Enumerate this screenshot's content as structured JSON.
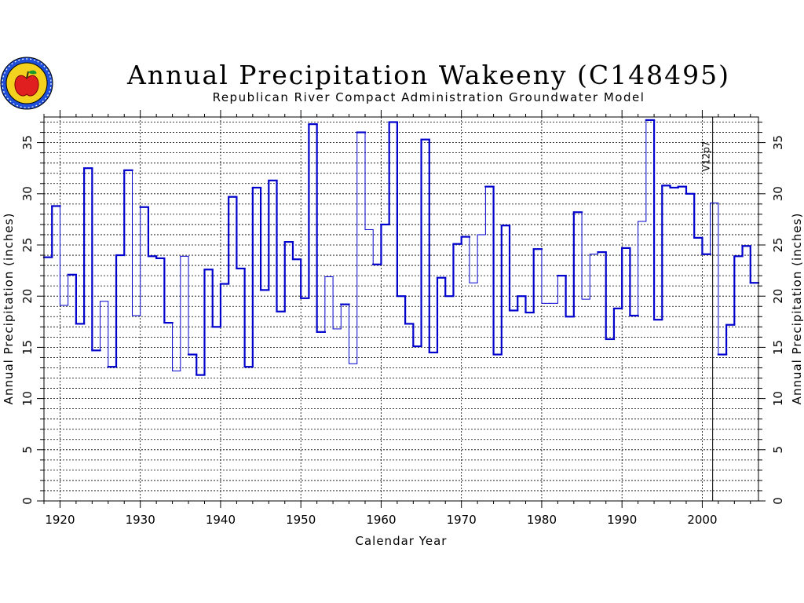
{
  "logo": {
    "icon": "apple-seal-logo",
    "colors": {
      "ring": "#1f4fd8",
      "fill": "#f2d21f",
      "apple": "#e02020"
    }
  },
  "chart_data": {
    "type": "line",
    "step": true,
    "title": "Annual Precipitation Wakeeny (C148495)",
    "subtitle": "Republican River Compact Administration Groundwater Model",
    "xlabel": "Calendar Year",
    "ylabel": "Annual Precipitation (inches)",
    "ylabel_right": "Annual Precipitation (inches)",
    "xlim": [
      1918,
      2007
    ],
    "ylim": [
      0,
      37.5
    ],
    "xticks": [
      1920,
      1930,
      1940,
      1950,
      1960,
      1970,
      1980,
      1990,
      2000
    ],
    "yticks": [
      0,
      5,
      10,
      15,
      20,
      25,
      30,
      35
    ],
    "grid": true,
    "vline": {
      "x": 2001,
      "label": "V12p7"
    },
    "series": [
      {
        "color": "#0000cc",
        "x": [
          1918,
          1919,
          1920,
          1921,
          1922,
          1923,
          1924,
          1925,
          1926,
          1927,
          1928,
          1929,
          1930,
          1931,
          1932,
          1933,
          1934,
          1935,
          1936,
          1937,
          1938,
          1939,
          1940,
          1941,
          1942,
          1943,
          1944,
          1945,
          1946,
          1947,
          1948,
          1949,
          1950,
          1951,
          1952,
          1953,
          1954,
          1955,
          1956,
          1957,
          1958,
          1959,
          1960,
          1961,
          1962,
          1963,
          1964,
          1965,
          1966,
          1967,
          1968,
          1969,
          1970,
          1971,
          1972,
          1973,
          1974,
          1975,
          1976,
          1977,
          1978,
          1979,
          1980,
          1981,
          1982,
          1983,
          1984,
          1985,
          1986,
          1987,
          1988,
          1989,
          1990,
          1991,
          1992,
          1993,
          1994,
          1995,
          1996,
          1997,
          1998,
          1999,
          2000,
          2001,
          2002,
          2003,
          2004,
          2005,
          2006
        ],
        "values": [
          23.8,
          28.8,
          19.1,
          22.1,
          17.3,
          32.5,
          14.7,
          19.5,
          13.1,
          24.0,
          32.3,
          18.1,
          28.7,
          23.9,
          23.7,
          17.4,
          12.7,
          23.9,
          14.3,
          12.3,
          22.6,
          17.0,
          21.2,
          29.7,
          22.7,
          13.1,
          30.6,
          20.6,
          31.3,
          18.5,
          25.3,
          23.6,
          19.8,
          36.8,
          16.5,
          21.9,
          16.8,
          19.2,
          13.4,
          36.0,
          26.5,
          23.1,
          27.0,
          37.0,
          20.0,
          17.3,
          15.1,
          35.3,
          14.5,
          21.8,
          20.0,
          25.1,
          25.8,
          21.3,
          26.0,
          30.7,
          14.3,
          26.9,
          18.6,
          20.0,
          18.4,
          24.6,
          19.3,
          19.3,
          22.0,
          18.0,
          28.2,
          19.7,
          24.1,
          24.3,
          15.8,
          18.8,
          24.7,
          18.1,
          27.3,
          37.2,
          17.7,
          30.8,
          30.6,
          30.7,
          30.0,
          25.7,
          24.1,
          29.1,
          14.3,
          17.2,
          23.9,
          24.9,
          21.3
        ],
        "thin_years": [
          1920,
          1925,
          1929,
          1934,
          1935,
          1953,
          1954,
          1956,
          1958,
          1971,
          1972,
          1980,
          1981,
          1985,
          1986,
          1992,
          2001
        ]
      }
    ]
  }
}
